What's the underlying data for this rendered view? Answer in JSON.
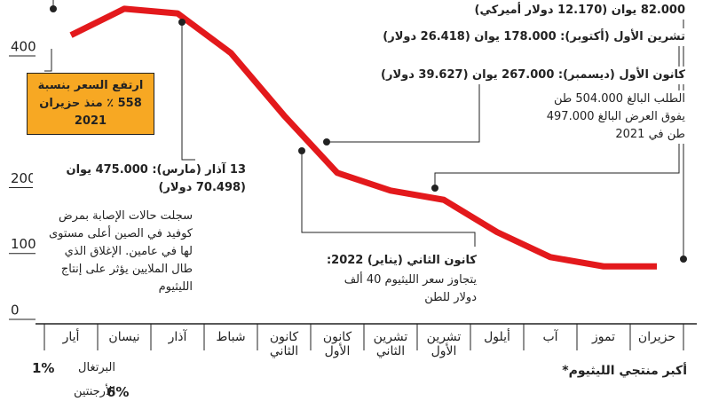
{
  "chart_data": {
    "type": "line",
    "categories": [
      "أيار",
      "نيسان",
      "آذار",
      "شباط",
      "كانون الثاني",
      "كانون الأول",
      "تشرين الثاني",
      "تشرين الأول",
      "أيلول",
      "آب",
      "تموز",
      "حزيران"
    ],
    "series": [
      {
        "color": "#e3191c",
        "values": [
          418,
          458,
          451,
          391,
          296,
          209,
          182,
          168,
          119,
          81,
          67,
          67
        ]
      }
    ],
    "ylim": [
      0,
      470
    ],
    "yticks": [
      0,
      100,
      200,
      400
    ],
    "annotations": [
      "82.000 يوان (12.170 دولار أميركي)",
      "تشرين الأول (أكتوبر): 178.000 يوان (26.418 دولار)",
      "كانون الأول (ديسمبر): 267.000 يوان (39.627 دولار)",
      "الطلب البالغ 504.000 طن يفوق العرض البالغ 497.000 طن في 2021",
      "13 آذار (مارس): 475.000 يوان (70.498 دولار)",
      "سجلت حالات الإصابة بمرض كوفيد في الصين أعلى مستوى لها في عامين. الإغلاق الذي طال الملايين يؤثر على إنتاج الليثيوم",
      "كانون الثاني (يناير) 2022:",
      "يتجاوز سعر الليثيوم 40 ألف دولار للطن",
      "ارتفع السعر بنسبة 558 ٪ منذ حزيران 2021"
    ],
    "producers_title": "أكبر منتجي الليثيوم*",
    "producers": [
      {
        "name": "البرتغال",
        "share": "1%"
      },
      {
        "name": "الأرجنتين",
        "share": "6%"
      }
    ]
  }
}
